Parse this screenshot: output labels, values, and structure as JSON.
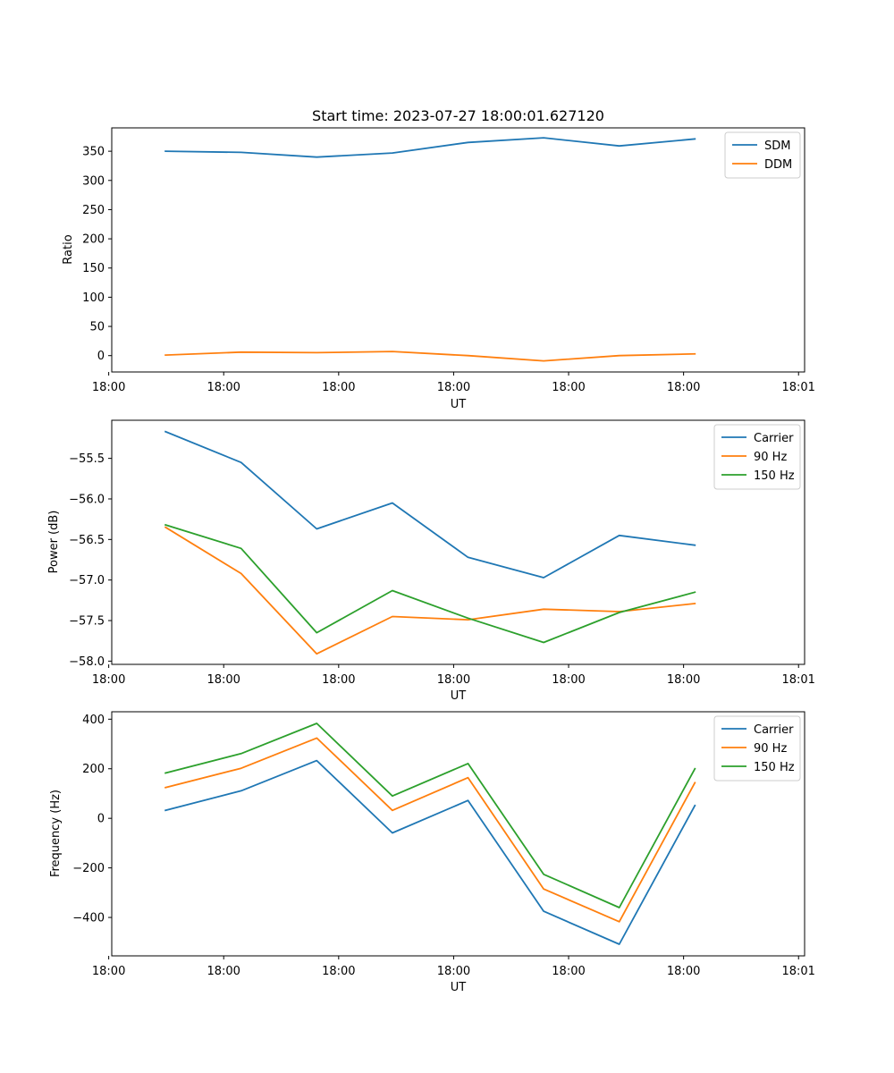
{
  "chart_data": [
    {
      "type": "line",
      "title": "Start time: 2023-07-27 18:00:01.627120",
      "xlabel": "UT",
      "ylabel": "Ratio",
      "x": [
        1,
        2,
        3,
        4,
        5,
        6,
        7,
        8
      ],
      "xlim": [
        0.29,
        9.45
      ],
      "ylim": [
        -28,
        390
      ],
      "xticks": [
        {
          "value": 0.25,
          "label": "18:00"
        },
        {
          "value": 1.77,
          "label": "18:00"
        },
        {
          "value": 3.29,
          "label": "18:00"
        },
        {
          "value": 4.81,
          "label": "18:00"
        },
        {
          "value": 6.33,
          "label": "18:00"
        },
        {
          "value": 7.85,
          "label": "18:00"
        },
        {
          "value": 9.37,
          "label": "18:01"
        }
      ],
      "yticks": [
        0,
        50,
        100,
        150,
        200,
        250,
        300,
        350
      ],
      "legend_loc": "top-right",
      "series": [
        {
          "name": "SDM",
          "color": "#1f77b4",
          "values": [
            350,
            348,
            340,
            347,
            365,
            373,
            359,
            371
          ]
        },
        {
          "name": "DDM",
          "color": "#ff7f0e",
          "values": [
            1,
            6,
            5,
            7,
            0,
            -9,
            0,
            3
          ]
        }
      ]
    },
    {
      "type": "line",
      "title": "",
      "xlabel": "UT",
      "ylabel": "Power (dB)",
      "x": [
        1,
        2,
        3,
        4,
        5,
        6,
        7,
        8
      ],
      "xlim": [
        0.29,
        9.45
      ],
      "ylim": [
        -58.04,
        -55.03
      ],
      "xticks": [
        {
          "value": 0.25,
          "label": "18:00"
        },
        {
          "value": 1.77,
          "label": "18:00"
        },
        {
          "value": 3.29,
          "label": "18:00"
        },
        {
          "value": 4.81,
          "label": "18:00"
        },
        {
          "value": 6.33,
          "label": "18:00"
        },
        {
          "value": 7.85,
          "label": "18:00"
        },
        {
          "value": 9.37,
          "label": "18:01"
        }
      ],
      "yticks": [
        -58.0,
        -57.5,
        -57.0,
        -56.5,
        -56.0,
        -55.5
      ],
      "ytick_labels": [
        "−58.0",
        "−57.5",
        "−57.0",
        "−56.5",
        "−56.0",
        "−55.5"
      ],
      "legend_loc": "top-right",
      "series": [
        {
          "name": "Carrier",
          "color": "#1f77b4",
          "values": [
            -55.17,
            -55.55,
            -56.37,
            -56.05,
            -56.72,
            -56.97,
            -56.45,
            -56.57
          ]
        },
        {
          "name": "90 Hz",
          "color": "#ff7f0e",
          "values": [
            -56.35,
            -56.92,
            -57.91,
            -57.45,
            -57.49,
            -57.36,
            -57.39,
            -57.29
          ]
        },
        {
          "name": "150 Hz",
          "color": "#2ca02c",
          "values": [
            -56.32,
            -56.61,
            -57.65,
            -57.13,
            -57.47,
            -57.77,
            -57.4,
            -57.15
          ]
        }
      ]
    },
    {
      "type": "line",
      "title": "",
      "xlabel": "UT",
      "ylabel": "Frequency (Hz)",
      "x": [
        1,
        2,
        3,
        4,
        5,
        6,
        7,
        8
      ],
      "xlim": [
        0.29,
        9.45
      ],
      "ylim": [
        -555,
        430
      ],
      "xticks": [
        {
          "value": 0.25,
          "label": "18:00"
        },
        {
          "value": 1.77,
          "label": "18:00"
        },
        {
          "value": 3.29,
          "label": "18:00"
        },
        {
          "value": 4.81,
          "label": "18:00"
        },
        {
          "value": 6.33,
          "label": "18:00"
        },
        {
          "value": 7.85,
          "label": "18:00"
        },
        {
          "value": 9.37,
          "label": "18:01"
        }
      ],
      "yticks": [
        -400,
        -200,
        0,
        200,
        400
      ],
      "ytick_labels": [
        "−400",
        "−200",
        "0",
        "200",
        "400"
      ],
      "legend_loc": "top-right",
      "series": [
        {
          "name": "Carrier",
          "color": "#1f77b4",
          "values": [
            32,
            111,
            233,
            -59,
            72,
            -375,
            -508,
            52
          ]
        },
        {
          "name": "90 Hz",
          "color": "#ff7f0e",
          "values": [
            124,
            202,
            324,
            32,
            164,
            -285,
            -417,
            144
          ]
        },
        {
          "name": "150 Hz",
          "color": "#2ca02c",
          "values": [
            183,
            261,
            383,
            90,
            221,
            -226,
            -360,
            200
          ]
        }
      ]
    }
  ]
}
